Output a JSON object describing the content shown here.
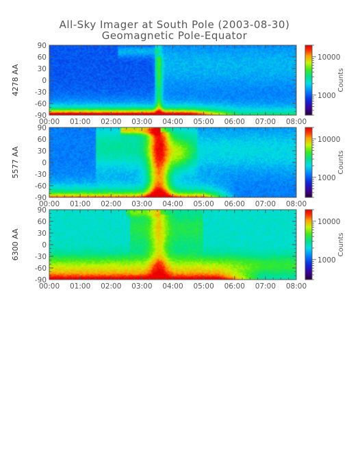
{
  "header": {
    "title": "All-Sky Imager at South Pole (2003-08-30)",
    "subtitle": "Geomagnetic Pole-Equator"
  },
  "chart_data": [
    {
      "type": "heatmap",
      "ylabel": "4278 AA",
      "y_ticks": [
        "90",
        "60",
        "30",
        "0",
        "-30",
        "-60",
        "-90"
      ],
      "x_ticks": [
        "00:00",
        "01:00",
        "02:00",
        "03:00",
        "04:00",
        "05:00",
        "06:00",
        "07:00",
        "08:00"
      ],
      "ylim": [
        -90,
        90
      ],
      "colorbar": {
        "label": "Counts",
        "ticks": [
          "10000",
          "1000"
        ],
        "scale": "log",
        "range": [
          300,
          20000
        ]
      }
    },
    {
      "type": "heatmap",
      "ylabel": "5577 AA",
      "y_ticks": [
        "90",
        "60",
        "30",
        "0",
        "-30",
        "-60",
        "-90"
      ],
      "x_ticks": [
        "00:00",
        "01:00",
        "02:00",
        "03:00",
        "04:00",
        "05:00",
        "06:00",
        "07:00",
        "08:00"
      ],
      "ylim": [
        -90,
        90
      ],
      "colorbar": {
        "label": "Counts",
        "ticks": [
          "10000",
          "1000"
        ],
        "scale": "log",
        "range": [
          300,
          20000
        ]
      }
    },
    {
      "type": "heatmap",
      "ylabel": "6300 AA",
      "y_ticks": [
        "90",
        "60",
        "30",
        "0",
        "-30",
        "-60",
        "-90"
      ],
      "x_ticks": [
        "00:00",
        "01:00",
        "02:00",
        "03:00",
        "04:00",
        "05:00",
        "06:00",
        "07:00",
        "08:00"
      ],
      "ylim": [
        -90,
        90
      ],
      "colorbar": {
        "label": "Counts",
        "ticks": [
          "10000",
          "1000"
        ],
        "scale": "log",
        "range": [
          300,
          20000
        ]
      }
    }
  ]
}
